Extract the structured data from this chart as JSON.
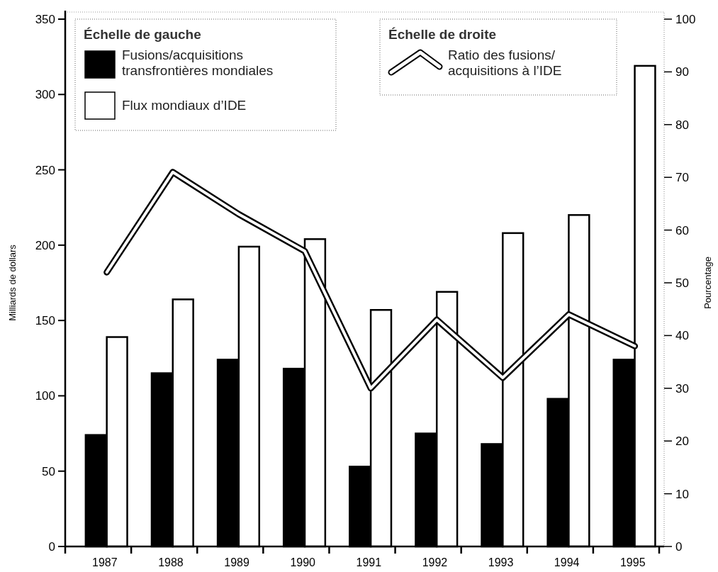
{
  "chart_data": {
    "type": "bar",
    "categories": [
      "1987",
      "1988",
      "1989",
      "1990",
      "1991",
      "1992",
      "1993",
      "1994",
      "1995"
    ],
    "series": [
      {
        "name": "Fusions/acquisitions transfrontières mondiales",
        "color": "#000000",
        "values": [
          74,
          115,
          124,
          118,
          53,
          75,
          68,
          98,
          124
        ]
      },
      {
        "name": "Flux mondiaux d’IDE",
        "color": "#ffffff",
        "values": [
          139,
          164,
          199,
          204,
          157,
          169,
          208,
          220,
          319
        ]
      },
      {
        "name": "Ratio des fusions/ acquisitions à l’IDE",
        "type": "line",
        "axis": "y2",
        "color": "#000000",
        "values": [
          52,
          71,
          63,
          56,
          30,
          43,
          32,
          44,
          38
        ]
      }
    ],
    "ylabel": "Milliards de dollars",
    "y2label": "Pourcentage",
    "ylim": [
      0,
      350
    ],
    "yticks": [
      0,
      50,
      100,
      150,
      200,
      250,
      300,
      350
    ],
    "y2lim": [
      0,
      100
    ],
    "y2ticks": [
      0,
      10,
      20,
      30,
      40,
      50,
      60,
      70,
      80,
      90,
      100
    ],
    "annotations": [
      "Échelle de gauche",
      "Échelle de droite"
    ],
    "legend": "top"
  }
}
